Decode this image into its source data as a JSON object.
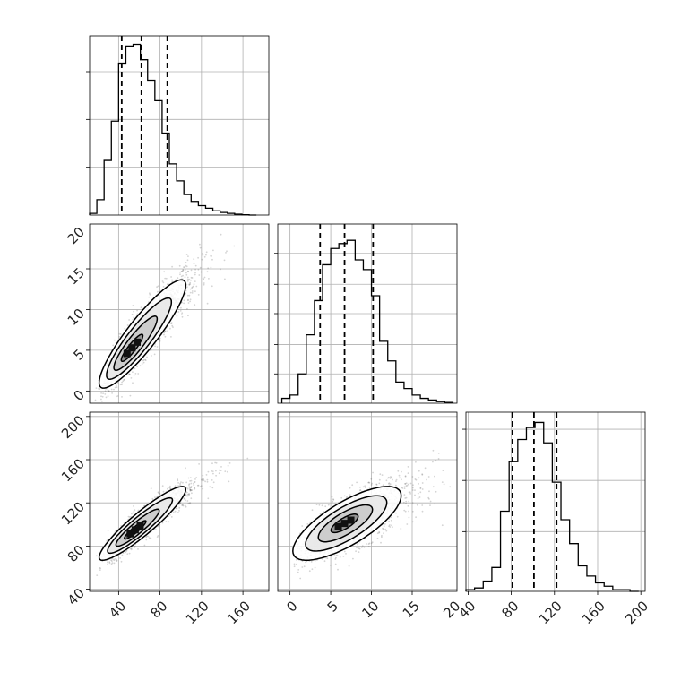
{
  "chart_data": {
    "type": "corner",
    "grid": true,
    "colors": {
      "hist": "#000000",
      "quantile": "#000000",
      "points": "#555555",
      "contour": "#000000"
    },
    "params": [
      {
        "range": [
          12,
          185
        ],
        "ticks": [
          40,
          80,
          120,
          160
        ],
        "tick_labels": [
          "40",
          "80",
          "120",
          "160"
        ]
      },
      {
        "range": [
          -1.5,
          20.5
        ],
        "ticks": [
          0,
          5,
          10,
          15,
          20
        ],
        "tick_labels": [
          "0",
          "5",
          "10",
          "15",
          "20"
        ]
      },
      {
        "range": [
          38,
          204
        ],
        "ticks": [
          40,
          80,
          120,
          160,
          200
        ],
        "tick_labels": [
          "40",
          "80",
          "120",
          "160",
          "200"
        ]
      }
    ],
    "histograms": [
      {
        "param": 0,
        "bin_edges": [
          12,
          19,
          26,
          33,
          40,
          47,
          54,
          61,
          68,
          75,
          82,
          89,
          96,
          103,
          110,
          117,
          124,
          131,
          138,
          145,
          152,
          159,
          166,
          173
        ],
        "counts": [
          0.01,
          0.09,
          0.32,
          0.55,
          0.89,
          0.99,
          1.0,
          0.91,
          0.79,
          0.67,
          0.48,
          0.3,
          0.2,
          0.12,
          0.08,
          0.055,
          0.04,
          0.025,
          0.015,
          0.01,
          0.005,
          0.002,
          0.0
        ],
        "ylim": [
          0,
          1.05
        ],
        "yticks": [
          0.28,
          0.56,
          0.84
        ],
        "quantiles": [
          43,
          62,
          87
        ]
      },
      {
        "param": 1,
        "bin_edges": [
          -1,
          0,
          1,
          2,
          3,
          4,
          5,
          6,
          7,
          8,
          9,
          10,
          11,
          12,
          13,
          14,
          15,
          16,
          17,
          18,
          19,
          20
        ],
        "counts": [
          0.03,
          0.05,
          0.18,
          0.42,
          0.63,
          0.85,
          0.95,
          0.98,
          1.0,
          0.88,
          0.82,
          0.66,
          0.38,
          0.26,
          0.13,
          0.09,
          0.05,
          0.03,
          0.02,
          0.01,
          0.005
        ],
        "ylim": [
          0,
          1.1
        ],
        "yticks": [
          0.18,
          0.36,
          0.55,
          0.73,
          0.92
        ],
        "quantiles": [
          3.7,
          6.7,
          10.2
        ]
      },
      {
        "param": 2,
        "bin_edges": [
          38,
          46,
          54,
          62,
          70,
          78,
          86,
          94,
          102,
          110,
          118,
          126,
          134,
          142,
          150,
          158,
          166,
          174,
          182,
          190,
          198
        ],
        "counts": [
          0.01,
          0.02,
          0.06,
          0.14,
          0.47,
          0.76,
          0.89,
          0.96,
          0.99,
          0.87,
          0.64,
          0.42,
          0.28,
          0.15,
          0.09,
          0.05,
          0.03,
          0.01,
          0.01,
          0.0
        ],
        "ylim": [
          0,
          1.05
        ],
        "yticks": [
          0.35,
          0.65,
          0.95
        ],
        "quantiles": [
          81,
          101,
          122
        ]
      }
    ],
    "scatter_panels": [
      {
        "x_param": 0,
        "y_param": 1,
        "mean": [
          63,
          7
        ],
        "sd": [
          22,
          3.5
        ],
        "corr": 0.9,
        "n_points": 1500,
        "contour_levels": [
          0.5,
          1.0,
          1.5,
          2.0
        ],
        "density_peak": [
          53,
          5.3
        ]
      },
      {
        "x_param": 0,
        "y_param": 2,
        "mean": [
          63,
          101
        ],
        "sd": [
          22,
          18
        ],
        "corr": 0.92,
        "n_points": 1500,
        "contour_levels": [
          0.5,
          1.0,
          1.5,
          2.0
        ],
        "density_peak": [
          56,
          95
        ]
      },
      {
        "x_param": 1,
        "y_param": 2,
        "mean": [
          7,
          101
        ],
        "sd": [
          3.5,
          18
        ],
        "corr": 0.75,
        "n_points": 1500,
        "contour_levels": [
          0.5,
          1.0,
          1.5,
          2.0
        ],
        "density_peak": [
          6.7,
          101
        ]
      }
    ]
  }
}
